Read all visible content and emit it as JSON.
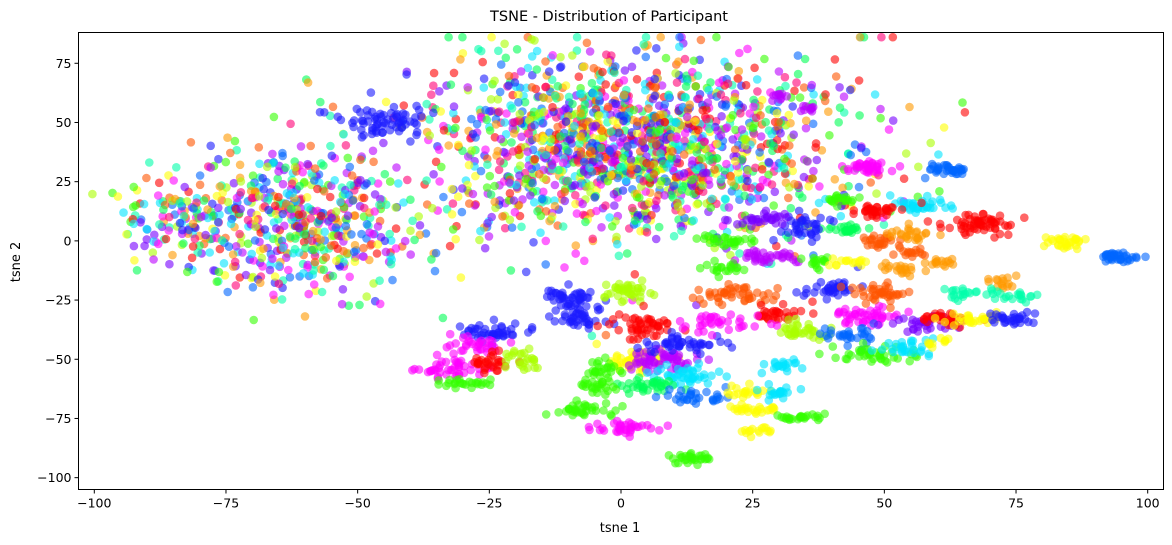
{
  "chart_data": {
    "type": "scatter",
    "title": "TSNE - Distribution of Participant",
    "xlabel": "tsne 1",
    "ylabel": "tsne 2",
    "xlim": [
      -103,
      103
    ],
    "ylim": [
      -105,
      88
    ],
    "xticks": [
      -100,
      -75,
      -50,
      -25,
      0,
      25,
      50,
      75,
      100
    ],
    "yticks": [
      -100,
      -75,
      -50,
      -25,
      0,
      25,
      50,
      75
    ],
    "xtick_labels": [
      "−100",
      "−75",
      "−50",
      "−25",
      "0",
      "25",
      "50",
      "75",
      "100"
    ],
    "ytick_labels": [
      "−100",
      "−75",
      "−50",
      "−25",
      "0",
      "25",
      "50",
      "75"
    ],
    "grid": false,
    "legend": "none",
    "marker_alpha": 0.6,
    "palette": [
      "#ff0000",
      "#ff5500",
      "#ff9900",
      "#ffff00",
      "#aaff00",
      "#33ff00",
      "#00ff55",
      "#00ffaa",
      "#00e5ff",
      "#0066ff",
      "#1a1aff",
      "#7700ff",
      "#bb00ff",
      "#ff00ff",
      "#ff0077"
    ],
    "clusters": [
      {
        "x": 2,
        "y": 40,
        "sx": 20,
        "sy": 20,
        "n": 1600,
        "color": "mixed"
      },
      {
        "x": -62,
        "y": 8,
        "sx": 12,
        "sy": 16,
        "n": 550,
        "color": "mixed"
      },
      {
        "x": -85,
        "y": 10,
        "sx": 5,
        "sy": 7,
        "n": 80,
        "color": "mixed"
      },
      {
        "x": -44,
        "y": 50,
        "sx": 5,
        "sy": 3,
        "n": 70,
        "color": "#1a1aff"
      },
      {
        "x": -10,
        "y": -24,
        "sx": 2.5,
        "sy": 2,
        "n": 45,
        "color": "#1a1aff"
      },
      {
        "x": -8,
        "y": -33,
        "sx": 3,
        "sy": 2,
        "n": 40,
        "color": "#1a1aff"
      },
      {
        "x": 1,
        "y": -21,
        "sx": 2.5,
        "sy": 2,
        "n": 40,
        "color": "#aaff00"
      },
      {
        "x": -24,
        "y": -39,
        "sx": 3,
        "sy": 2.5,
        "n": 45,
        "color": "#1a1aff"
      },
      {
        "x": -33,
        "y": -54,
        "sx": 3,
        "sy": 2.5,
        "n": 45,
        "color": "#ff00ff"
      },
      {
        "x": -28,
        "y": -44,
        "sx": 2.5,
        "sy": 2,
        "n": 30,
        "color": "#ff00ff"
      },
      {
        "x": -30,
        "y": -60,
        "sx": 3,
        "sy": 1,
        "n": 25,
        "color": "#33ff00"
      },
      {
        "x": -25,
        "y": -52,
        "sx": 2,
        "sy": 2,
        "n": 30,
        "color": "#ff0000"
      },
      {
        "x": -19,
        "y": -50,
        "sx": 2,
        "sy": 2,
        "n": 25,
        "color": "#aaff00"
      },
      {
        "x": 4,
        "y": -36,
        "sx": 3,
        "sy": 2.5,
        "n": 50,
        "color": "#ff0000"
      },
      {
        "x": 2,
        "y": -50,
        "sx": 3,
        "sy": 2.5,
        "n": 45,
        "color": "#ffff00"
      },
      {
        "x": 8,
        "y": -50,
        "sx": 3.5,
        "sy": 2.5,
        "n": 60,
        "color": "#bb00ff"
      },
      {
        "x": 11,
        "y": -43,
        "sx": 4,
        "sy": 2,
        "n": 45,
        "color": "#1a1aff"
      },
      {
        "x": 13,
        "y": -57,
        "sx": 3.5,
        "sy": 2,
        "n": 45,
        "color": "#00e5ff"
      },
      {
        "x": 6,
        "y": -61,
        "sx": 3,
        "sy": 1.5,
        "n": 35,
        "color": "#00ff55"
      },
      {
        "x": -4,
        "y": -62,
        "sx": 2,
        "sy": 2,
        "n": 25,
        "color": "#33ff00"
      },
      {
        "x": -3,
        "y": -55,
        "sx": 2,
        "sy": 2,
        "n": 25,
        "color": "#33ff00"
      },
      {
        "x": 14,
        "y": -66,
        "sx": 3,
        "sy": 1.5,
        "n": 30,
        "color": "#0066ff"
      },
      {
        "x": -7,
        "y": -71,
        "sx": 3,
        "sy": 1.5,
        "n": 35,
        "color": "#33ff00"
      },
      {
        "x": 0,
        "y": -79,
        "sx": 3,
        "sy": 1.2,
        "n": 35,
        "color": "#ff00ff"
      },
      {
        "x": 13,
        "y": -92,
        "sx": 2.5,
        "sy": 1.2,
        "n": 30,
        "color": "#33ff00"
      },
      {
        "x": 24,
        "y": -64,
        "sx": 2,
        "sy": 1.5,
        "n": 20,
        "color": "#ffff00"
      },
      {
        "x": 30,
        "y": -64,
        "sx": 2,
        "sy": 1.5,
        "n": 20,
        "color": "#00e5ff"
      },
      {
        "x": 24,
        "y": -71,
        "sx": 3,
        "sy": 1,
        "n": 25,
        "color": "#ffff00"
      },
      {
        "x": 34,
        "y": -74,
        "sx": 2.5,
        "sy": 1,
        "n": 25,
        "color": "#33ff00"
      },
      {
        "x": 26,
        "y": -80,
        "sx": 1.5,
        "sy": 1,
        "n": 15,
        "color": "#ffff00"
      },
      {
        "x": 30,
        "y": -52,
        "sx": 2,
        "sy": 1.5,
        "n": 20,
        "color": "#00e5ff"
      },
      {
        "x": 22,
        "y": -23,
        "sx": 4,
        "sy": 2,
        "n": 45,
        "color": "#ff5500"
      },
      {
        "x": 30,
        "y": -30,
        "sx": 3,
        "sy": 2,
        "n": 30,
        "color": "#ff0000"
      },
      {
        "x": 20,
        "y": -35,
        "sx": 4,
        "sy": 2,
        "n": 35,
        "color": "#ff00ff"
      },
      {
        "x": 35,
        "y": -38,
        "sx": 3,
        "sy": 2,
        "n": 35,
        "color": "#aaff00"
      },
      {
        "x": 46,
        "y": -32,
        "sx": 3.5,
        "sy": 2,
        "n": 45,
        "color": "#ff00ff"
      },
      {
        "x": 40,
        "y": -20,
        "sx": 3,
        "sy": 1.5,
        "n": 35,
        "color": "#1a1aff"
      },
      {
        "x": 49,
        "y": -22,
        "sx": 3,
        "sy": 2,
        "n": 40,
        "color": "#ff5500"
      },
      {
        "x": 44,
        "y": -40,
        "sx": 3,
        "sy": 2,
        "n": 30,
        "color": "#0066ff"
      },
      {
        "x": 48,
        "y": -48,
        "sx": 4,
        "sy": 2,
        "n": 40,
        "color": "#33ff00"
      },
      {
        "x": 55,
        "y": -45,
        "sx": 3,
        "sy": 2,
        "n": 30,
        "color": "#00e5ff"
      },
      {
        "x": 57,
        "y": -35,
        "sx": 3,
        "sy": 2,
        "n": 30,
        "color": "#7700ff"
      },
      {
        "x": 62,
        "y": -33,
        "sx": 2.5,
        "sy": 1.5,
        "n": 30,
        "color": "#ff0000"
      },
      {
        "x": 67,
        "y": -33,
        "sx": 3,
        "sy": 1.5,
        "n": 30,
        "color": "#ffff00"
      },
      {
        "x": 74,
        "y": -33,
        "sx": 2.5,
        "sy": 1.5,
        "n": 30,
        "color": "#1a1aff"
      },
      {
        "x": 72,
        "y": -18,
        "sx": 1.5,
        "sy": 1.5,
        "n": 15,
        "color": "#ff9900"
      },
      {
        "x": 66,
        "y": -22,
        "sx": 3,
        "sy": 1.5,
        "n": 25,
        "color": "#00ffaa"
      },
      {
        "x": 76,
        "y": -24,
        "sx": 2,
        "sy": 1,
        "n": 15,
        "color": "#00ffaa"
      },
      {
        "x": 60,
        "y": -42,
        "sx": 1.5,
        "sy": 1.2,
        "n": 10,
        "color": "#ffff00"
      },
      {
        "x": 47,
        "y": 31,
        "sx": 2,
        "sy": 1.2,
        "n": 35,
        "color": "#ff00ff"
      },
      {
        "x": 62,
        "y": 30,
        "sx": 2,
        "sy": 1.2,
        "n": 35,
        "color": "#0066ff"
      },
      {
        "x": 69,
        "y": 7,
        "sx": 3,
        "sy": 2.5,
        "n": 60,
        "color": "#ff0000"
      },
      {
        "x": 57,
        "y": 15,
        "sx": 2.5,
        "sy": 1.5,
        "n": 35,
        "color": "#00e5ff"
      },
      {
        "x": 48,
        "y": 13,
        "sx": 2.5,
        "sy": 1.5,
        "n": 35,
        "color": "#ff0000"
      },
      {
        "x": 42,
        "y": 17,
        "sx": 1.5,
        "sy": 1.2,
        "n": 20,
        "color": "#33ff00"
      },
      {
        "x": 43,
        "y": 5,
        "sx": 2,
        "sy": 1.2,
        "n": 25,
        "color": "#00ff55"
      },
      {
        "x": 49,
        "y": 0,
        "sx": 2,
        "sy": 1.5,
        "n": 25,
        "color": "#ff5500"
      },
      {
        "x": 55,
        "y": 3,
        "sx": 2,
        "sy": 1.5,
        "n": 25,
        "color": "#ff9900"
      },
      {
        "x": 35,
        "y": 5,
        "sx": 2,
        "sy": 2.5,
        "n": 35,
        "color": "#1a1aff"
      },
      {
        "x": 27,
        "y": 9,
        "sx": 2.5,
        "sy": 1.2,
        "n": 30,
        "color": "#7700ff"
      },
      {
        "x": 20,
        "y": 0,
        "sx": 3,
        "sy": 1.2,
        "n": 30,
        "color": "#33ff00"
      },
      {
        "x": 27,
        "y": -7,
        "sx": 3,
        "sy": 1.5,
        "n": 35,
        "color": "#bb00ff"
      },
      {
        "x": 19,
        "y": -12,
        "sx": 2,
        "sy": 1.2,
        "n": 20,
        "color": "#33ff00"
      },
      {
        "x": 37,
        "y": -9,
        "sx": 1.5,
        "sy": 1.2,
        "n": 15,
        "color": "#33ff00"
      },
      {
        "x": 43,
        "y": -9,
        "sx": 2,
        "sy": 1.2,
        "n": 15,
        "color": "#ffff00"
      },
      {
        "x": 53,
        "y": -12,
        "sx": 2,
        "sy": 1.2,
        "n": 20,
        "color": "#ff9900"
      },
      {
        "x": 55,
        "y": -5,
        "sx": 2,
        "sy": 1.2,
        "n": 15,
        "color": "#ff5500"
      },
      {
        "x": 61,
        "y": -9,
        "sx": 2,
        "sy": 1,
        "n": 15,
        "color": "#ff9900"
      },
      {
        "x": 84,
        "y": -1,
        "sx": 2,
        "sy": 1.5,
        "n": 30,
        "color": "#ffff00"
      },
      {
        "x": 95,
        "y": -7,
        "sx": 2,
        "sy": 1.2,
        "n": 35,
        "color": "#0066ff"
      },
      {
        "x": 30,
        "y": 61,
        "sx": 1,
        "sy": 1,
        "n": 10,
        "color": "#bb00ff"
      },
      {
        "x": 36,
        "y": 56,
        "sx": 1,
        "sy": 0.8,
        "n": 10,
        "color": "#bb00ff"
      }
    ]
  }
}
